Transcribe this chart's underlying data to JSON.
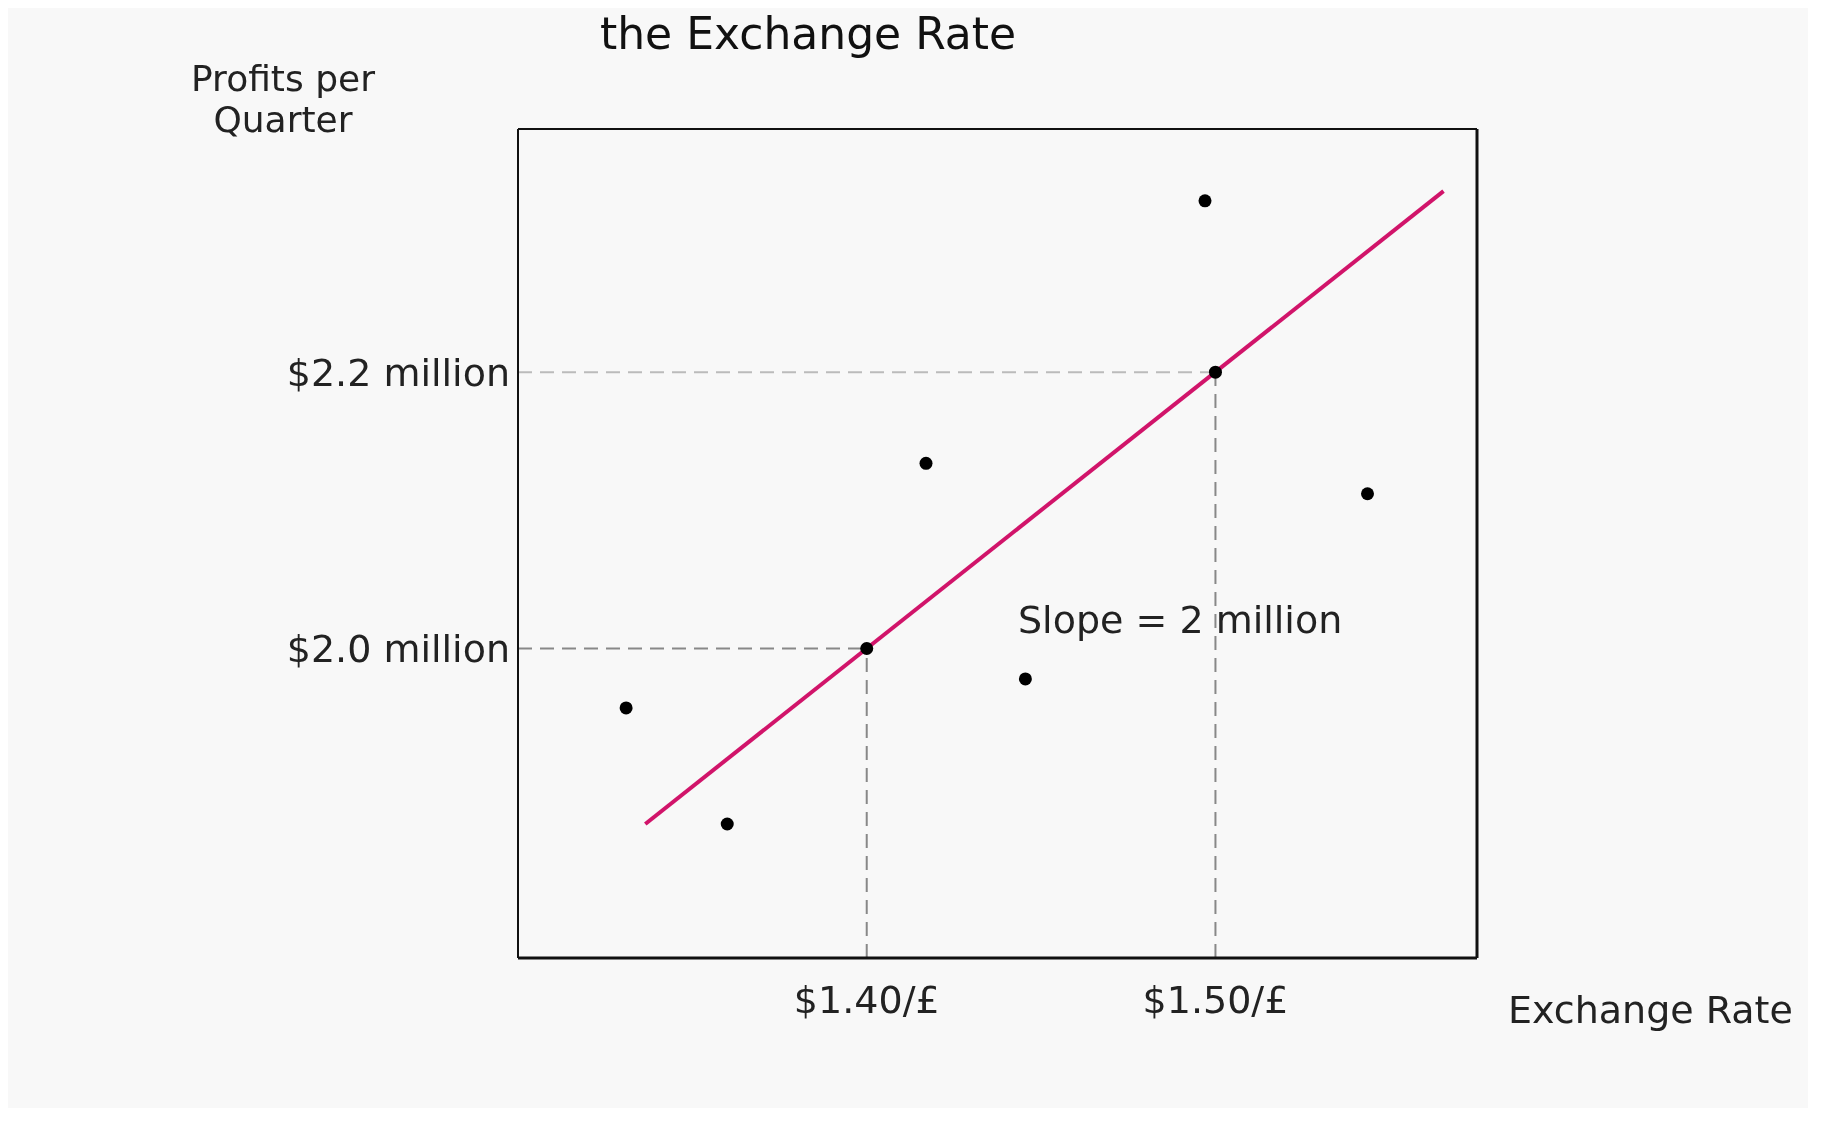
{
  "chart_data": {
    "type": "scatter",
    "title": "the Exchange Rate",
    "xlabel": "Exchange Rate",
    "ylabel": "Profits per Quarter",
    "series": [
      {
        "marker": "circle",
        "color": "#000000",
        "x": [
          1.331,
          1.36,
          1.4,
          1.417,
          1.4455,
          1.497,
          1.5,
          1.5436
        ],
        "values": [
          1.957,
          1.873,
          2.0,
          2.134,
          1.978,
          2.324,
          2.2,
          2.112
        ]
      },
      {
        "type": "line",
        "color": "#d1146a",
        "x": [
          1.3365,
          1.5654
        ],
        "values": [
          1.873,
          2.331
        ]
      }
    ],
    "xlim": [
      1.3,
      1.575
    ],
    "ylim": [
      1.776,
      2.376
    ],
    "xticks": [
      {
        "value": 1.4,
        "label": "$1.40/£"
      },
      {
        "value": 1.5,
        "label": "$1.50/£"
      }
    ],
    "yticks": [
      {
        "value": 2.0,
        "label": "$2.0 million"
      },
      {
        "value": 2.2,
        "label": "$2.2 million"
      }
    ],
    "ref_lines": [
      {
        "axis": "y",
        "value": 2.0,
        "line_style": "dashed",
        "color": "#888888"
      },
      {
        "axis": "y",
        "value": 2.2,
        "line_style": "dashed",
        "color": "#bbbbbb"
      },
      {
        "axis": "x",
        "value": 1.4,
        "line_style": "dashed",
        "color": "#888888"
      },
      {
        "axis": "x",
        "value": 1.5,
        "line_style": "dashed",
        "color": "#888888"
      }
    ],
    "annotations": [
      "Slope = 2 million"
    ],
    "grid": false
  }
}
